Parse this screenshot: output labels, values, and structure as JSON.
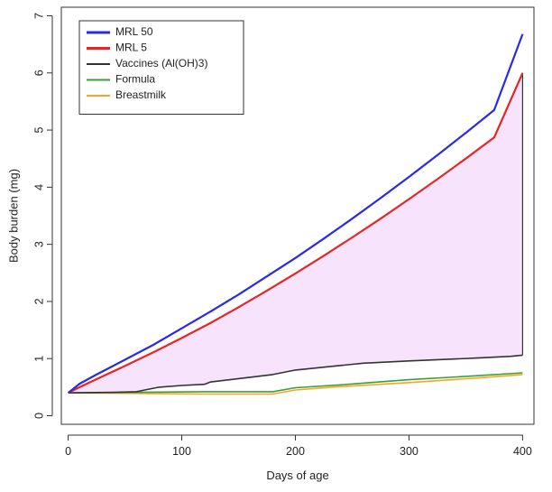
{
  "chart_data": {
    "type": "line",
    "title": "",
    "xlabel": "Days of age",
    "ylabel": "Body burden (mg)",
    "xlim": [
      -6,
      410
    ],
    "ylim": [
      -0.15,
      7.15
    ],
    "xticks": [
      0,
      100,
      200,
      300,
      400
    ],
    "yticks": [
      0,
      1,
      2,
      3,
      4,
      5,
      6,
      7
    ],
    "grid": false,
    "legend_position": "top-left",
    "shaded_region": {
      "between": [
        "MRL 5",
        "Vaccines (Al(OH)3)"
      ],
      "color": "#f7e3fb"
    },
    "series": [
      {
        "name": "MRL 50",
        "color": "#2a2ae6",
        "x": [
          0,
          10,
          25,
          50,
          75,
          100,
          125,
          150,
          175,
          200,
          225,
          250,
          275,
          300,
          325,
          350,
          375,
          400
        ],
        "values": [
          0.4,
          0.56,
          0.72,
          0.98,
          1.24,
          1.53,
          1.82,
          2.12,
          2.44,
          2.76,
          3.1,
          3.45,
          3.81,
          4.18,
          4.56,
          4.95,
          5.35,
          6.68
        ]
      },
      {
        "name": "MRL 5",
        "color": "#e62525",
        "x": [
          0,
          10,
          25,
          50,
          75,
          100,
          125,
          150,
          175,
          200,
          225,
          250,
          275,
          300,
          325,
          350,
          375,
          400
        ],
        "values": [
          0.4,
          0.5,
          0.64,
          0.87,
          1.11,
          1.36,
          1.62,
          1.9,
          2.19,
          2.49,
          2.8,
          3.12,
          3.45,
          3.79,
          4.14,
          4.5,
          4.87,
          6.0
        ]
      },
      {
        "name": "Vaccines (Al(OH)3)",
        "color": "#333333",
        "x": [
          0,
          40,
          60,
          70,
          80,
          100,
          120,
          125,
          150,
          180,
          190,
          200,
          240,
          260,
          300,
          360,
          390,
          400
        ],
        "values": [
          0.4,
          0.41,
          0.42,
          0.46,
          0.5,
          0.53,
          0.55,
          0.59,
          0.65,
          0.72,
          0.76,
          0.8,
          0.88,
          0.92,
          0.96,
          1.01,
          1.04,
          1.06
        ]
      },
      {
        "name": "Formula",
        "color": "#3a9e3a",
        "x": [
          0,
          60,
          120,
          180,
          200,
          240,
          300,
          360,
          400
        ],
        "values": [
          0.4,
          0.41,
          0.42,
          0.42,
          0.49,
          0.54,
          0.63,
          0.7,
          0.75
        ]
      },
      {
        "name": "Breastmilk",
        "color": "#f5a623",
        "x": [
          0,
          60,
          120,
          180,
          200,
          240,
          300,
          360,
          400
        ],
        "values": [
          0.4,
          0.39,
          0.38,
          0.38,
          0.45,
          0.51,
          0.58,
          0.66,
          0.72
        ]
      }
    ]
  }
}
